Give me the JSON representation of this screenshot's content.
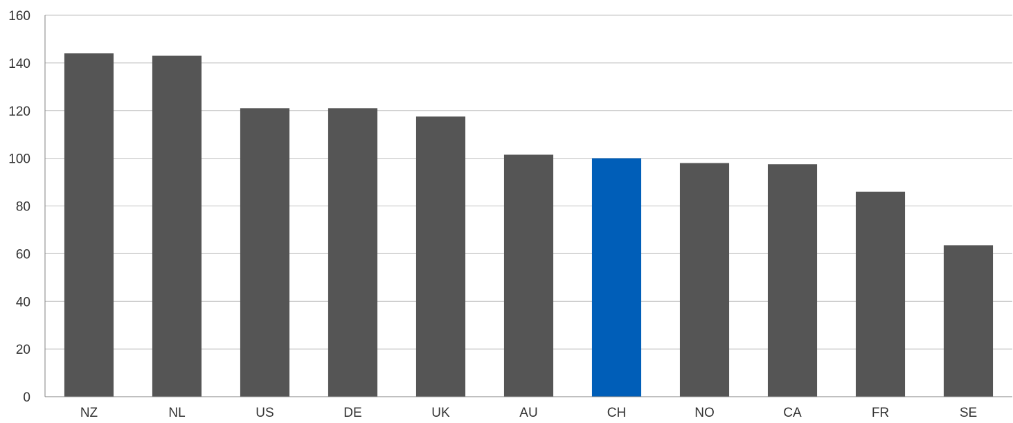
{
  "chart_data": {
    "type": "bar",
    "title": "",
    "xlabel": "",
    "ylabel": "",
    "categories": [
      "NZ",
      "NL",
      "US",
      "DE",
      "UK",
      "AU",
      "CH",
      "NO",
      "CA",
      "FR",
      "SE"
    ],
    "values": [
      144,
      143,
      121,
      121,
      117.5,
      101.5,
      100,
      98,
      97.5,
      86,
      63.5
    ],
    "highlight_category": "CH",
    "ylim": [
      0,
      160
    ],
    "yticks": [
      0,
      20,
      40,
      60,
      80,
      100,
      120,
      140,
      160
    ],
    "grid": true,
    "legend": "none",
    "colors": {
      "bar": "#555555",
      "highlight": "#005EB8"
    }
  }
}
